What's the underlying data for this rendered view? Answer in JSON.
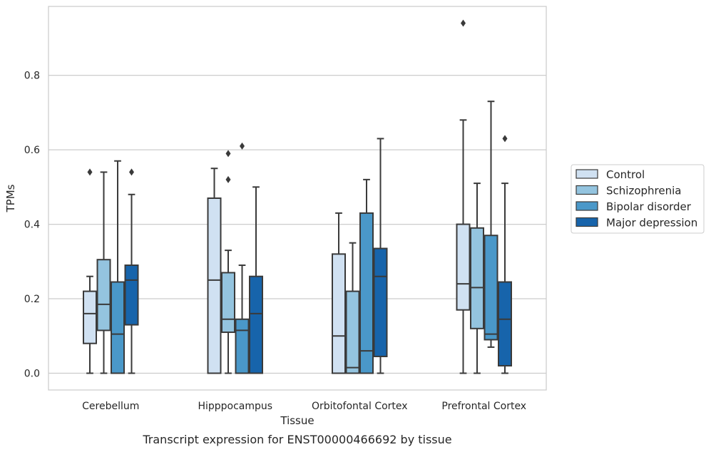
{
  "chart_data": {
    "type": "box",
    "xlabel": "Tissue",
    "ylabel": "TPMs",
    "caption": "Transcript expression for ENST00000466692 by tissue",
    "ylim": [
      -0.045,
      0.985
    ],
    "yticks": [
      "0.0",
      "0.2",
      "0.4",
      "0.6",
      "0.8"
    ],
    "grid": "horizontal",
    "legend_position": "right",
    "categories": [
      "Cerebellum",
      "Hipppocampus",
      "Orbitofontal Cortex",
      "Prefrontal Cortex"
    ],
    "series": [
      {
        "name": "Control",
        "color": "#d0e1f2",
        "boxes": [
          {
            "whislo": 0.0,
            "q1": 0.08,
            "med": 0.16,
            "q3": 0.22,
            "whishi": 0.26,
            "fliers": [
              0.54
            ]
          },
          {
            "whislo": 0.0,
            "q1": 0.0,
            "med": 0.25,
            "q3": 0.47,
            "whishi": 0.55,
            "fliers": []
          },
          {
            "whislo": 0.0,
            "q1": 0.0,
            "med": 0.1,
            "q3": 0.32,
            "whishi": 0.43,
            "fliers": []
          },
          {
            "whislo": 0.0,
            "q1": 0.17,
            "med": 0.24,
            "q3": 0.4,
            "whishi": 0.68,
            "fliers": [
              0.94
            ]
          }
        ]
      },
      {
        "name": "Schizophrenia",
        "color": "#94c4df",
        "boxes": [
          {
            "whislo": 0.0,
            "q1": 0.115,
            "med": 0.185,
            "q3": 0.305,
            "whishi": 0.54,
            "fliers": []
          },
          {
            "whislo": 0.0,
            "q1": 0.11,
            "med": 0.145,
            "q3": 0.27,
            "whishi": 0.33,
            "fliers": [
              0.52,
              0.59
            ]
          },
          {
            "whislo": 0.0,
            "q1": 0.0,
            "med": 0.015,
            "q3": 0.22,
            "whishi": 0.35,
            "fliers": []
          },
          {
            "whislo": 0.0,
            "q1": 0.12,
            "med": 0.23,
            "q3": 0.39,
            "whishi": 0.51,
            "fliers": []
          }
        ]
      },
      {
        "name": "Bipolar disorder",
        "color": "#4a98c9",
        "boxes": [
          {
            "whislo": 0.0,
            "q1": 0.0,
            "med": 0.105,
            "q3": 0.245,
            "whishi": 0.57,
            "fliers": []
          },
          {
            "whislo": 0.0,
            "q1": 0.0,
            "med": 0.115,
            "q3": 0.145,
            "whishi": 0.29,
            "fliers": [
              0.61
            ]
          },
          {
            "whislo": 0.0,
            "q1": 0.0,
            "med": 0.06,
            "q3": 0.43,
            "whishi": 0.52,
            "fliers": []
          },
          {
            "whislo": 0.07,
            "q1": 0.09,
            "med": 0.105,
            "q3": 0.37,
            "whishi": 0.73,
            "fliers": []
          }
        ]
      },
      {
        "name": "Major depression",
        "color": "#1764ab",
        "boxes": [
          {
            "whislo": 0.0,
            "q1": 0.13,
            "med": 0.25,
            "q3": 0.29,
            "whishi": 0.48,
            "fliers": [
              0.54
            ]
          },
          {
            "whislo": 0.0,
            "q1": 0.0,
            "med": 0.16,
            "q3": 0.26,
            "whishi": 0.5,
            "fliers": []
          },
          {
            "whislo": 0.0,
            "q1": 0.045,
            "med": 0.26,
            "q3": 0.335,
            "whishi": 0.63,
            "fliers": []
          },
          {
            "whislo": 0.0,
            "q1": 0.02,
            "med": 0.145,
            "q3": 0.245,
            "whishi": 0.51,
            "fliers": [
              0.63
            ]
          }
        ]
      }
    ],
    "colors": {
      "grid": "#cccccc",
      "frame": "#cccccc",
      "line": "#3a3a3a"
    }
  }
}
